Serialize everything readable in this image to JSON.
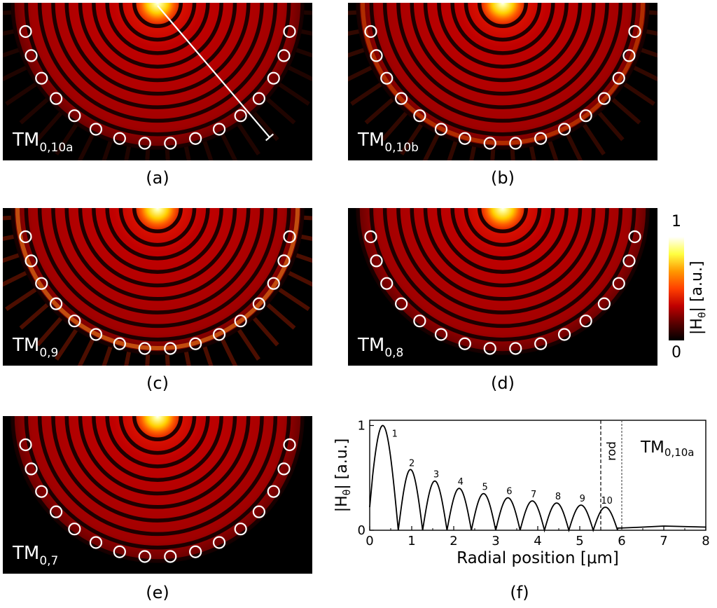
{
  "panels": [
    {
      "id": "a",
      "caption": "(a)",
      "mode_main": "TM",
      "mode_sub": "0,10a",
      "scan_line": true,
      "glow": "dim"
    },
    {
      "id": "b",
      "caption": "(b)",
      "mode_main": "TM",
      "mode_sub": "0,10b",
      "scan_line": false,
      "glow": "rim"
    },
    {
      "id": "c",
      "caption": "(c)",
      "mode_main": "TM",
      "mode_sub": "0,9",
      "scan_line": false,
      "glow": "strong"
    },
    {
      "id": "d",
      "caption": "(d)",
      "mode_main": "TM",
      "mode_sub": "0,8",
      "scan_line": false,
      "glow": "none"
    },
    {
      "id": "e",
      "caption": "(e)",
      "mode_main": "TM",
      "mode_sub": "0,7",
      "scan_line": false,
      "glow": "none"
    }
  ],
  "colorbar": {
    "max_label": "1",
    "min_label": "0",
    "quantity_main": "|H",
    "quantity_sub": "θ",
    "quantity_tail": "|  [a.u.]",
    "colors": [
      "#000000",
      "#5a0000",
      "#c00000",
      "#ff4000",
      "#ff9800",
      "#ffff40",
      "#ffffff"
    ]
  },
  "chart_data": {
    "type": "line",
    "caption": "(f)",
    "xlabel": "Radial position  [μm]",
    "ylabel_main": "|H",
    "ylabel_sub": "θ",
    "ylabel_tail": "|  [a.u.]",
    "xlim": [
      0,
      8
    ],
    "ylim": [
      0,
      1.05
    ],
    "x_ticks": [
      0,
      1,
      2,
      3,
      4,
      5,
      6,
      7,
      8
    ],
    "y_ticks": [
      0,
      1
    ],
    "mode_label_main": "TM",
    "mode_label_sub": "0,10a",
    "rod_label": "rod",
    "rod_edges": [
      5.5,
      6.0
    ],
    "zeros": [
      0.68,
      1.26,
      1.84,
      2.42,
      3.0,
      3.58,
      4.16,
      4.74,
      5.32,
      5.9
    ],
    "peaks": [
      {
        "label": "1",
        "x": 0.33,
        "y": 1.0
      },
      {
        "label": "2",
        "x": 0.97,
        "y": 0.58
      },
      {
        "label": "3",
        "x": 1.55,
        "y": 0.47
      },
      {
        "label": "4",
        "x": 2.13,
        "y": 0.4
      },
      {
        "label": "5",
        "x": 2.71,
        "y": 0.35
      },
      {
        "label": "6",
        "x": 3.29,
        "y": 0.31
      },
      {
        "label": "7",
        "x": 3.87,
        "y": 0.28
      },
      {
        "label": "8",
        "x": 4.45,
        "y": 0.26
      },
      {
        "label": "9",
        "x": 5.03,
        "y": 0.24
      },
      {
        "label": "10",
        "x": 5.61,
        "y": 0.22
      }
    ],
    "start_value": 0.22,
    "tail": [
      [
        5.9,
        0.02
      ],
      [
        6.5,
        0.03
      ],
      [
        7.0,
        0.04
      ],
      [
        7.5,
        0.035
      ],
      [
        8.0,
        0.03
      ]
    ]
  }
}
